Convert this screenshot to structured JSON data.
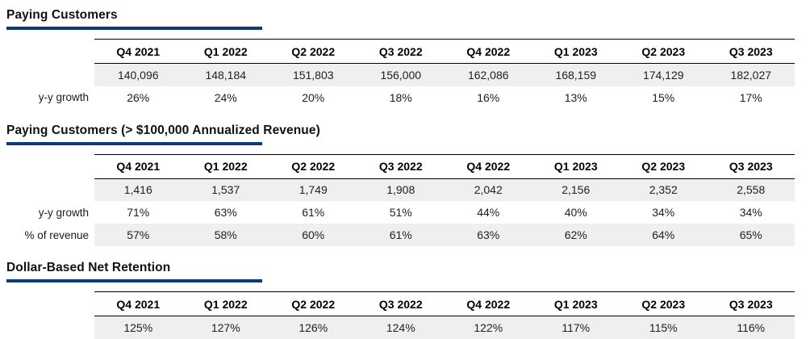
{
  "colors": {
    "accent": "#0d3a7d",
    "row_shade": "#efefef",
    "rule": "#000000"
  },
  "quarters": [
    "Q4 2021",
    "Q1 2022",
    "Q2 2022",
    "Q3 2022",
    "Q4 2022",
    "Q1 2023",
    "Q2 2023",
    "Q3 2023"
  ],
  "sections": [
    {
      "title": "Paying Customers",
      "rows": [
        {
          "label": "",
          "shaded": true,
          "values": [
            "140,096",
            "148,184",
            "151,803",
            "156,000",
            "162,086",
            "168,159",
            "174,129",
            "182,027"
          ]
        },
        {
          "label": "y-y growth",
          "shaded": false,
          "values": [
            "26%",
            "24%",
            "20%",
            "18%",
            "16%",
            "13%",
            "15%",
            "17%"
          ]
        }
      ]
    },
    {
      "title": "Paying Customers (> $100,000 Annualized Revenue)",
      "rows": [
        {
          "label": "",
          "shaded": true,
          "values": [
            "1,416",
            "1,537",
            "1,749",
            "1,908",
            "2,042",
            "2,156",
            "2,352",
            "2,558"
          ]
        },
        {
          "label": "y-y growth",
          "shaded": false,
          "values": [
            "71%",
            "63%",
            "61%",
            "51%",
            "44%",
            "40%",
            "34%",
            "34%"
          ]
        },
        {
          "label": "% of revenue",
          "shaded": true,
          "values": [
            "57%",
            "58%",
            "60%",
            "61%",
            "63%",
            "62%",
            "64%",
            "65%"
          ]
        }
      ]
    },
    {
      "title": "Dollar-Based Net Retention",
      "rows": [
        {
          "label": "",
          "shaded": true,
          "values": [
            "125%",
            "127%",
            "126%",
            "124%",
            "122%",
            "117%",
            "115%",
            "116%"
          ]
        }
      ]
    }
  ]
}
